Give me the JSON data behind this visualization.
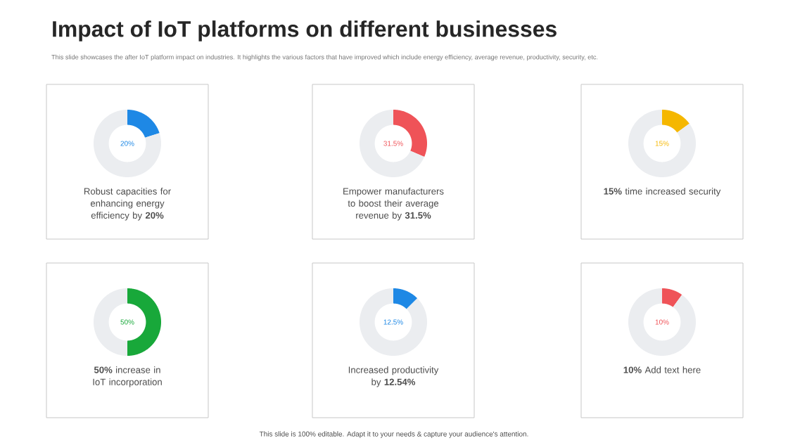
{
  "chart_data": [
    {
      "type": "other",
      "title": "Impact of IoT platforms on different businesses",
      "subtitle": "This slide showcases the after IoT platform impact on industries. It highlights the various factors that have improved which include energy efficiency, average revenue, productivity, security, etc.",
      "annotations": [
        "This slide is 100% editable. Adapt it to your needs & capture your audience's attention."
      ]
    },
    {
      "type": "donut",
      "categories": [
        null,
        null
      ],
      "values": [
        20,
        80
      ],
      "colors": [
        "#1e88e5",
        "#ebedf0"
      ],
      "annotations": [
        "20%",
        "Robust capacities for enhancing energy efficiency by **20%**"
      ]
    },
    {
      "type": "donut",
      "categories": [
        null,
        null
      ],
      "values": [
        31.5,
        68.5
      ],
      "colors": [
        "#ef5358",
        "#ebedf0"
      ],
      "annotations": [
        "31.5%",
        "Empower manufacturers to boost their average revenue by **31.5%**"
      ]
    },
    {
      "type": "donut",
      "categories": [
        null,
        null
      ],
      "values": [
        15,
        85
      ],
      "colors": [
        "#f5b700",
        "#ebedf0"
      ],
      "annotations": [
        "15%",
        "**15%** time increased security"
      ]
    },
    {
      "type": "donut",
      "categories": [
        null,
        null
      ],
      "values": [
        50,
        50
      ],
      "colors": [
        "#18a83a",
        "#ebedf0"
      ],
      "annotations": [
        "50%",
        "**50%** increase in IoT incorporation"
      ]
    },
    {
      "type": "donut",
      "categories": [
        null,
        null
      ],
      "values": [
        12.54,
        87.46
      ],
      "colors": [
        "#1e88e5",
        "#ebedf0"
      ],
      "annotations": [
        "12.5%",
        "Increased productivity by **12.54%**"
      ]
    },
    {
      "type": "donut",
      "categories": [
        null,
        null
      ],
      "values": [
        10,
        90
      ],
      "colors": [
        "#ef5358",
        "#ebedf0"
      ],
      "annotations": [
        "10%",
        "**10%** Add text here"
      ]
    }
  ]
}
